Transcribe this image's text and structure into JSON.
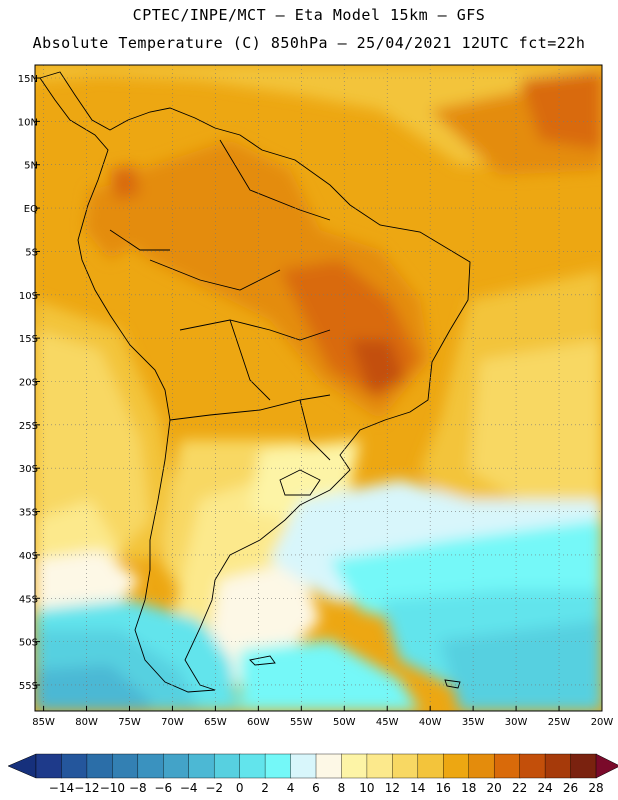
{
  "header": {
    "line1": "CPTEC/INPE/MCT –  Eta Model 15km – GFS",
    "line2": "Absolute Temperature (C) 850hPa – 25/04/2021 12UTC fct=22h"
  },
  "map": {
    "lat_labels": [
      "15N",
      "10N",
      "5N",
      "EQ",
      "5S",
      "10S",
      "15S",
      "20S",
      "25S",
      "30S",
      "35S",
      "40S",
      "45S",
      "50S",
      "55S"
    ],
    "lon_labels": [
      "85W",
      "80W",
      "75W",
      "70W",
      "65W",
      "60W",
      "55W",
      "50W",
      "45W",
      "40W",
      "35W",
      "30W",
      "25W",
      "20W"
    ],
    "lat_values": [
      15,
      10,
      5,
      0,
      -5,
      -10,
      -15,
      -20,
      -25,
      -30,
      -35,
      -40,
      -45,
      -50,
      -55
    ],
    "lon_values": [
      -85,
      -80,
      -75,
      -70,
      -65,
      -60,
      -55,
      -50,
      -45,
      -40,
      -35,
      -30,
      -25,
      -20
    ],
    "extent": {
      "lon_min": -86,
      "lon_max": -20,
      "lat_min": -58,
      "lat_max": 16.5
    }
  },
  "colorbar": {
    "labels": [
      "-14",
      "-12",
      "-10",
      "-8",
      "-6",
      "-4",
      "-2",
      "0",
      "2",
      "4",
      "6",
      "8",
      "10",
      "12",
      "14",
      "16",
      "18",
      "20",
      "22",
      "24",
      "26",
      "28"
    ],
    "colors": [
      "#1e3a8a",
      "#24569c",
      "#2b6ea8",
      "#3380b3",
      "#3a92bf",
      "#43a3c8",
      "#4cb8d4",
      "#57d0e0",
      "#62e4ec",
      "#74f8f8",
      "#d8f6fb",
      "#fdf8e6",
      "#fdf4a6",
      "#fce98c",
      "#f8d863",
      "#f3c43b",
      "#eda712",
      "#e48c0c",
      "#d96a0a",
      "#c34f0a",
      "#a63a0a",
      "#7a220f"
    ],
    "left_arrow_color": "#16307c",
    "right_arrow_color": "#7a0a2a"
  }
}
